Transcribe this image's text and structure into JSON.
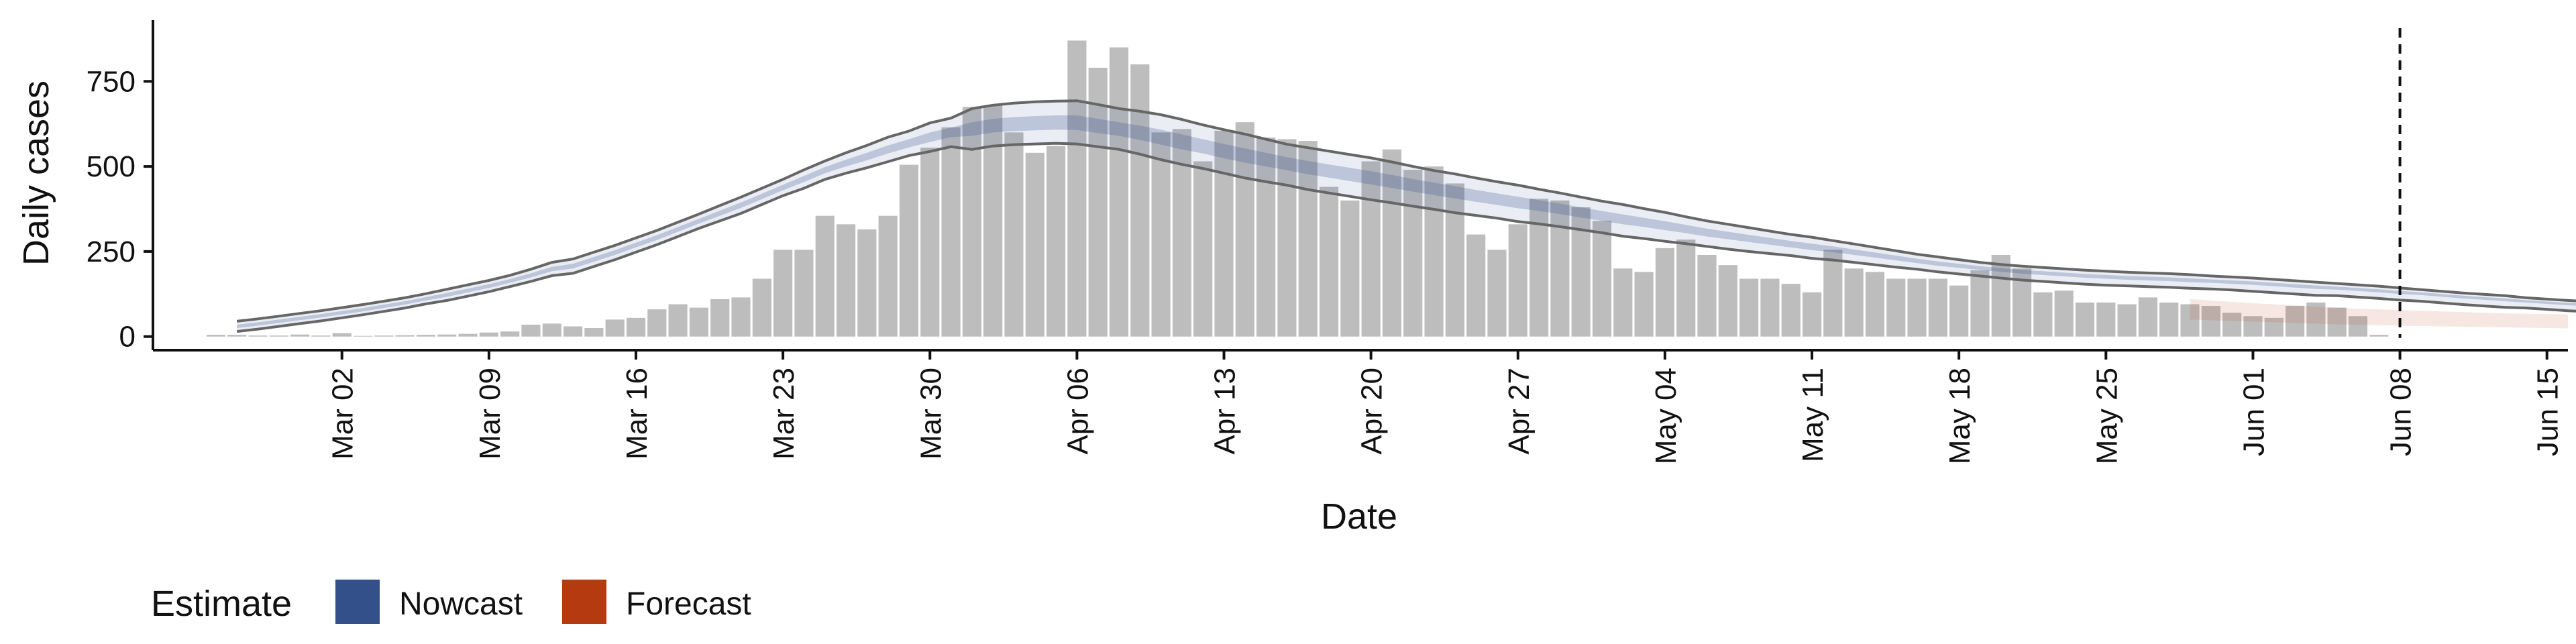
{
  "chart_data": {
    "type": "bar",
    "xlabel": "Date",
    "ylabel": "Daily cases",
    "ylim": [
      -40,
      930
    ],
    "yticks": [
      0,
      250,
      500,
      750
    ],
    "xlim": [
      "2020-02-22",
      "2020-06-16"
    ],
    "xticks": [
      {
        "date": "2020-03-02",
        "label": "Mar 02"
      },
      {
        "date": "2020-03-09",
        "label": "Mar 09"
      },
      {
        "date": "2020-03-16",
        "label": "Mar 16"
      },
      {
        "date": "2020-03-23",
        "label": "Mar 23"
      },
      {
        "date": "2020-03-30",
        "label": "Mar 30"
      },
      {
        "date": "2020-04-06",
        "label": "Apr 06"
      },
      {
        "date": "2020-04-13",
        "label": "Apr 13"
      },
      {
        "date": "2020-04-20",
        "label": "Apr 20"
      },
      {
        "date": "2020-04-27",
        "label": "Apr 27"
      },
      {
        "date": "2020-05-04",
        "label": "May 04"
      },
      {
        "date": "2020-05-11",
        "label": "May 11"
      },
      {
        "date": "2020-05-18",
        "label": "May 18"
      },
      {
        "date": "2020-05-25",
        "label": "May 25"
      },
      {
        "date": "2020-06-01",
        "label": "Jun 01"
      },
      {
        "date": "2020-06-08",
        "label": "Jun 08"
      },
      {
        "date": "2020-06-15",
        "label": "Jun 15"
      }
    ],
    "grid": false,
    "legend_position": "bottom-left",
    "reference_line_date": "2020-06-08",
    "bar_color": "#bdbdbd",
    "bars": {
      "start_date": "2020-02-25",
      "values": [
        5,
        5,
        3,
        3,
        6,
        3,
        10,
        2,
        3,
        4,
        5,
        6,
        8,
        12,
        15,
        35,
        38,
        30,
        25,
        50,
        55,
        80,
        95,
        85,
        110,
        115,
        170,
        255,
        255,
        355,
        330,
        315,
        355,
        505,
        555,
        615,
        675,
        680,
        600,
        540,
        560,
        870,
        790,
        850,
        800,
        600,
        610,
        515,
        605,
        630,
        585,
        580,
        575,
        440,
        400,
        515,
        550,
        490,
        500,
        450,
        300,
        255,
        330,
        405,
        400,
        380,
        340,
        200,
        190,
        260,
        285,
        240,
        210,
        170,
        170,
        155,
        130,
        255,
        200,
        190,
        170,
        170,
        170,
        150,
        195,
        240,
        200,
        130,
        135,
        100,
        100,
        95,
        115,
        100,
        95,
        90,
        70,
        60,
        55,
        90,
        100,
        85,
        60,
        5,
        0,
        0,
        0,
        0,
        0,
        0
      ]
    },
    "series": [
      {
        "name": "Nowcast",
        "color": "#33508a",
        "band_start_date": "2020-02-26",
        "outer_upper": [
          45,
          52,
          60,
          68,
          76,
          85,
          94,
          104,
          114,
          126,
          139,
          152,
          165,
          180,
          198,
          218,
          228,
          248,
          268,
          290,
          312,
          336,
          360,
          385,
          410,
          436,
          462,
          490,
          516,
          540,
          562,
          586,
          604,
          628,
          642,
          670,
          680,
          686,
          690,
          692,
          693,
          682,
          670,
          662,
          652,
          638,
          622,
          608,
          595,
          580,
          565,
          555,
          545,
          535,
          525,
          513,
          500,
          488,
          478,
          466,
          455,
          445,
          433,
          422,
          410,
          398,
          388,
          376,
          365,
          352,
          340,
          330,
          320,
          310,
          300,
          292,
          282,
          272,
          262,
          252,
          242,
          234,
          226,
          218,
          212,
          207,
          203,
          199,
          195,
          192,
          189,
          187,
          185,
          182,
          178,
          175,
          172,
          168,
          164,
          160,
          156,
          152,
          148,
          143,
          138,
          133,
          128,
          124,
          120,
          114,
          110,
          106,
          103,
          100,
          97,
          95,
          93,
          91,
          88,
          85
        ],
        "inner_upper": [
          35,
          42,
          50,
          58,
          66,
          75,
          84,
          94,
          104,
          116,
          128,
          141,
          154,
          169,
          186,
          205,
          214,
          234,
          254,
          276,
          298,
          322,
          346,
          370,
          394,
          420,
          446,
          472,
          498,
          520,
          540,
          562,
          580,
          600,
          614,
          630,
          640,
          645,
          648,
          650,
          650,
          640,
          630,
          620,
          608,
          594,
          580,
          566,
          553,
          540,
          527,
          516,
          506,
          496,
          486,
          475,
          463,
          452,
          442,
          431,
          421,
          411,
          401,
          391,
          380,
          369,
          359,
          349,
          339,
          328,
          317,
          308,
          299,
          290,
          281,
          273,
          265,
          256,
          247,
          238,
          229,
          221,
          214,
          207,
          201,
          196,
          192,
          188,
          184,
          181,
          178,
          176,
          174,
          171,
          168,
          165,
          162,
          158,
          154,
          150,
          147,
          143,
          139,
          134,
          130,
          125,
          120,
          116,
          112,
          107,
          103,
          99,
          96,
          93,
          91,
          89,
          87,
          85,
          82,
          79
        ],
        "inner_lower": [
          25,
          32,
          40,
          48,
          56,
          65,
          74,
          84,
          94,
          106,
          117,
          130,
          143,
          158,
          174,
          192,
          200,
          220,
          240,
          262,
          284,
          308,
          332,
          355,
          378,
          404,
          430,
          454,
          480,
          500,
          518,
          538,
          556,
          572,
          586,
          590,
          600,
          604,
          606,
          608,
          607,
          598,
          590,
          578,
          564,
          550,
          538,
          524,
          511,
          500,
          489,
          477,
          467,
          457,
          447,
          437,
          426,
          416,
          406,
          396,
          387,
          377,
          369,
          360,
          350,
          340,
          330,
          322,
          313,
          304,
          294,
          286,
          278,
          270,
          262,
          254,
          248,
          240,
          232,
          224,
          216,
          208,
          202,
          196,
          190,
          185,
          181,
          177,
          173,
          170,
          167,
          165,
          163,
          160,
          158,
          155,
          152,
          148,
          144,
          140,
          138,
          134,
          130,
          125,
          122,
          117,
          112,
          108,
          104,
          100,
          96,
          92,
          89,
          86,
          85,
          83,
          81,
          79,
          76,
          73
        ],
        "outer_lower": [
          15,
          22,
          30,
          38,
          46,
          55,
          64,
          74,
          84,
          96,
          106,
          119,
          132,
          147,
          162,
          179,
          186,
          206,
          226,
          248,
          270,
          294,
          318,
          340,
          362,
          388,
          414,
          436,
          462,
          480,
          496,
          514,
          532,
          544,
          558,
          550,
          560,
          564,
          566,
          568,
          566,
          558,
          550,
          536,
          520,
          506,
          494,
          480,
          466,
          455,
          445,
          432,
          422,
          412,
          402,
          393,
          383,
          374,
          364,
          356,
          348,
          338,
          331,
          323,
          314,
          305,
          295,
          288,
          280,
          273,
          265,
          257,
          250,
          244,
          238,
          230,
          225,
          218,
          211,
          204,
          198,
          190,
          184,
          178,
          172,
          166,
          162,
          158,
          154,
          151,
          149,
          147,
          145,
          142,
          140,
          137,
          133,
          129,
          125,
          121,
          120,
          116,
          112,
          107,
          104,
          99,
          94,
          90,
          86,
          84,
          80,
          76,
          73,
          70,
          69,
          67,
          65,
          63,
          60,
          57
        ],
        "outline_color": "#666666"
      },
      {
        "name": "Forecast",
        "color": "#b63a0f",
        "band_start_date": "2020-05-29",
        "upper": [
          110,
          106,
          102,
          98,
          95,
          92,
          88,
          85,
          82,
          80,
          78,
          76,
          74,
          72,
          70,
          68,
          67,
          66,
          65
        ],
        "lower": [
          50,
          48,
          46,
          44,
          42,
          40,
          38,
          36,
          35,
          34,
          32,
          31,
          30,
          29,
          28,
          27,
          26,
          25,
          24
        ]
      }
    ],
    "legend": {
      "title": "Estimate",
      "items": [
        {
          "label": "Nowcast",
          "color": "#33508a"
        },
        {
          "label": "Forecast",
          "color": "#b63a0f"
        }
      ]
    }
  }
}
